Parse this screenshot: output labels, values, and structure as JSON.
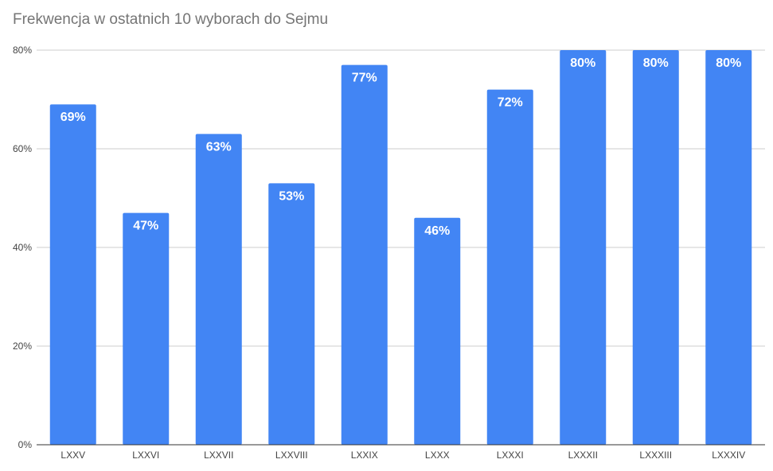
{
  "chart_data": {
    "type": "bar",
    "title": "Frekwencja w ostatnich 10 wyborach do Sejmu",
    "categories": [
      "LXXV",
      "LXXVI",
      "LXXVII",
      "LXXVIII",
      "LXXIX",
      "LXXX",
      "LXXXI",
      "LXXXII",
      "LXXXIII",
      "LXXXIV"
    ],
    "values": [
      69,
      47,
      63,
      53,
      77,
      46,
      72,
      80,
      80,
      80
    ],
    "data_labels": [
      "69%",
      "47%",
      "63%",
      "53%",
      "77%",
      "46%",
      "72%",
      "80%",
      "80%",
      "80%"
    ],
    "y_ticks": [
      0,
      20,
      40,
      60,
      80
    ],
    "y_tick_labels": [
      "0%",
      "20%",
      "40%",
      "60%",
      "80%"
    ],
    "ylim": [
      0,
      80
    ],
    "grid": true,
    "bar_color": "#4285f4",
    "xlabel": "",
    "ylabel": ""
  }
}
